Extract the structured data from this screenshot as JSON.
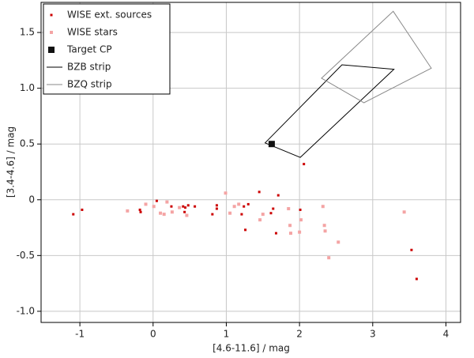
{
  "chart_data": {
    "type": "scatter",
    "xlabel": "[4.6-11.6] / mag",
    "ylabel": "[3.4-4.6] / mag",
    "xlim": [
      -1.53,
      4.2
    ],
    "ylim": [
      -1.1,
      1.77
    ],
    "xticks": [
      -1,
      0,
      1,
      2,
      3,
      4
    ],
    "yticks": [
      {
        "value": -1,
        "label": "-1.0"
      },
      -0.5,
      0,
      0.5,
      {
        "value": 1,
        "label": "1.0"
      },
      1.5
    ],
    "grid": true,
    "legend": "upper left",
    "series": [
      {
        "name": "WISE ext. sources",
        "type": "scatter",
        "color": "#cc0000",
        "size": 3,
        "x": [
          -1.09,
          -0.97,
          -0.18,
          -0.17,
          0.05,
          0.25,
          0.41,
          0.44,
          0.48,
          0.57,
          0.43,
          0.81,
          0.87,
          0.87,
          1.24,
          1.3,
          1.21,
          1.45,
          1.71,
          1.64,
          1.61,
          1.26,
          1.68,
          2.06,
          2.01,
          3.53,
          3.6
        ],
        "y": [
          -0.13,
          -0.09,
          -0.09,
          -0.11,
          -0.01,
          -0.06,
          -0.06,
          -0.07,
          -0.05,
          -0.06,
          -0.11,
          -0.13,
          -0.05,
          -0.08,
          -0.06,
          -0.04,
          -0.13,
          0.07,
          0.04,
          -0.08,
          -0.12,
          -0.27,
          -0.3,
          0.32,
          -0.09,
          -0.45,
          -0.71
        ]
      },
      {
        "name": "WISE stars",
        "type": "scatter",
        "color": "#f4a4a4",
        "size": 4,
        "x": [
          -0.35,
          -0.1,
          0.01,
          0.1,
          0.15,
          0.19,
          0.26,
          0.36,
          0.46,
          0.99,
          1.05,
          1.11,
          1.17,
          1.46,
          1.5,
          1.85,
          1.87,
          1.88,
          2.02,
          2.0,
          2.32,
          2.34,
          2.35,
          2.53,
          2.4,
          3.43
        ],
        "y": [
          -0.1,
          -0.04,
          -0.06,
          -0.12,
          -0.13,
          -0.02,
          -0.11,
          -0.07,
          -0.14,
          0.06,
          -0.12,
          -0.06,
          -0.04,
          -0.18,
          -0.13,
          -0.08,
          -0.23,
          -0.3,
          -0.18,
          -0.29,
          -0.06,
          -0.23,
          -0.28,
          -0.38,
          -0.52,
          -0.11
        ]
      },
      {
        "name": "Target CP",
        "type": "scatter",
        "color": "#111111",
        "size": 8,
        "x": [
          1.62
        ],
        "y": [
          0.5
        ]
      },
      {
        "name": "BZB strip",
        "type": "polygon",
        "color": "#000000",
        "x": [
          1.53,
          2.58,
          3.29,
          2.01
        ],
        "y": [
          0.51,
          1.21,
          1.17,
          0.38
        ]
      },
      {
        "name": "BZQ strip",
        "type": "polygon",
        "color": "#888888",
        "x": [
          2.3,
          3.28,
          3.8,
          2.88
        ],
        "y": [
          1.09,
          1.69,
          1.18,
          0.87
        ]
      }
    ]
  }
}
